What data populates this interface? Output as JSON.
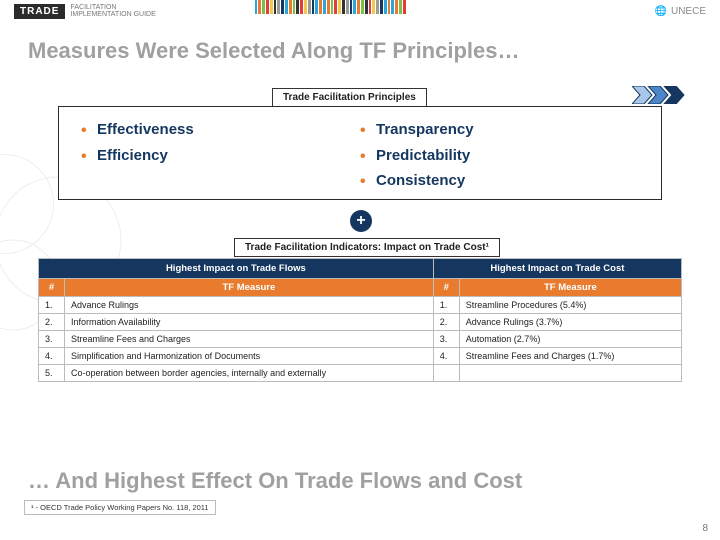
{
  "colors": {
    "navy": "#14365f",
    "orange": "#e87b2e",
    "grey_title": "#a0a0a0",
    "border": "#bcbcbc",
    "barcode": [
      "#2aa6de",
      "#e87b2e",
      "#7cc04b",
      "#e43b3b",
      "#f2c94c",
      "#333333",
      "#9b9b9b",
      "#14365f",
      "#2aa6de",
      "#e87b2e",
      "#7cc04b",
      "#333333",
      "#e43b3b",
      "#f2c94c",
      "#9b9b9b",
      "#14365f",
      "#2aa6de",
      "#e87b2e"
    ]
  },
  "brand": {
    "trade": "TRADE",
    "sub1": "FACILITATION",
    "sub2": "IMPLEMENTATION GUIDE",
    "right": "UNECE",
    "globe": "🌐"
  },
  "title": "Measures Were Selected Along TF Principles…",
  "principles_label": "Trade Facilitation Principles",
  "principles": {
    "left": [
      "Effectiveness",
      "Efficiency"
    ],
    "right": [
      "Transparency",
      "Predictability",
      "Consistency"
    ]
  },
  "plus": "+",
  "indicators_label": "Trade Facilitation Indicators: Impact on Trade Cost¹",
  "table": {
    "head_flow": "Highest Impact on Trade Flows",
    "head_cost": "Highest Impact on Trade Cost",
    "sub_num": "#",
    "sub_measure": "TF Measure",
    "rows": [
      {
        "n1": "1.",
        "m1": "Advance Rulings",
        "n2": "1.",
        "m2": "Streamline Procedures (5.4%)"
      },
      {
        "n1": "2.",
        "m1": "Information Availability",
        "n2": "2.",
        "m2": "Advance Rulings (3.7%)"
      },
      {
        "n1": "3.",
        "m1": "Streamline Fees and Charges",
        "n2": "3.",
        "m2": "Automation (2.7%)"
      },
      {
        "n1": "4.",
        "m1": "Simplification and Harmonization of Documents",
        "n2": "4.",
        "m2": "Streamline Fees and Charges (1.7%)"
      },
      {
        "n1": "5.",
        "m1": "Co-operation between border agencies, internally and externally",
        "n2": "",
        "m2": ""
      }
    ]
  },
  "footer_title": "… And Highest Effect On Trade Flows and Cost",
  "footnote": "¹ - OECD Trade Policy Working Papers No. 118, 2011",
  "page": "8",
  "chevrons": {
    "fills": [
      "#a9c7e8",
      "#4d86c6",
      "#14365f"
    ],
    "stroke": "#14365f"
  }
}
